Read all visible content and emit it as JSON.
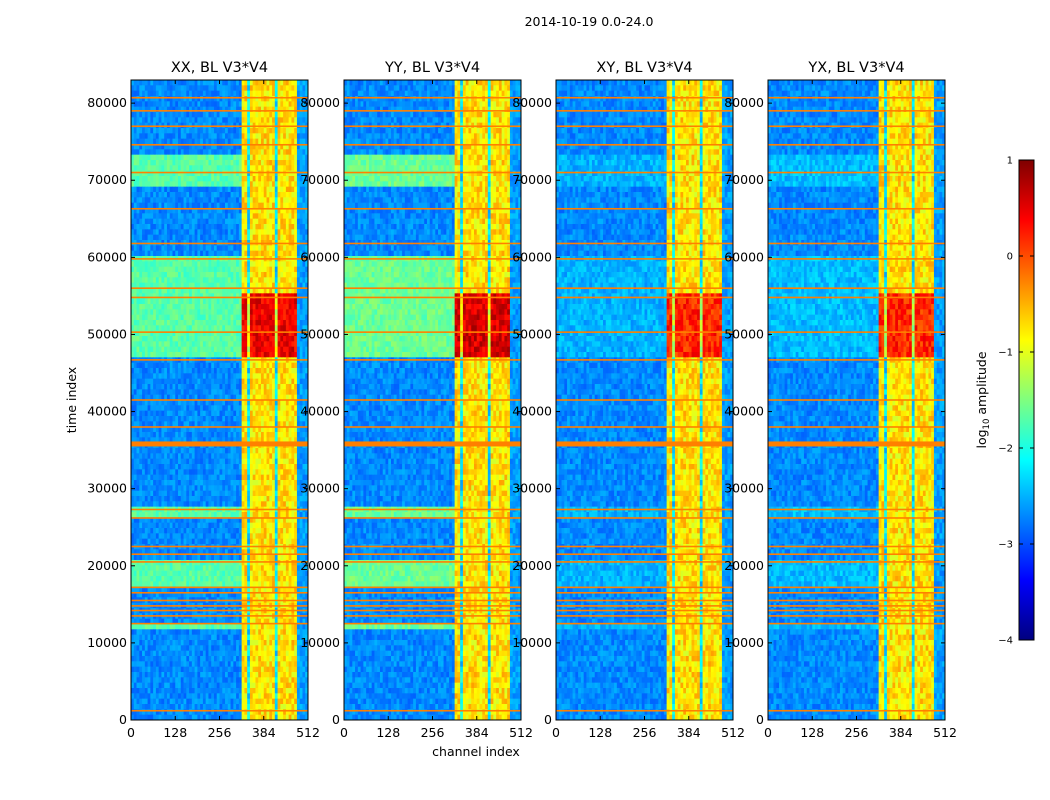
{
  "chart_data": {
    "type": "heatmap",
    "suptitle": "2014-10-19 0.0-24.0",
    "xlabel": "channel index",
    "ylabel": "time index",
    "xlim": [
      0,
      512
    ],
    "ylim": [
      0,
      83000
    ],
    "xticks": [
      0,
      128,
      256,
      384,
      512
    ],
    "yticks": [
      0,
      10000,
      20000,
      30000,
      40000,
      50000,
      60000,
      70000,
      80000
    ],
    "panels": [
      {
        "title": "XX, BL V3*V4",
        "band_level": 0.2,
        "peak_level": 0.95
      },
      {
        "title": "YY, BL V3*V4",
        "band_level": 0.22,
        "peak_level": 0.97
      },
      {
        "title": "XY, BL V3*V4",
        "band_level": 0.04,
        "peak_level": 0.9
      },
      {
        "title": "YX, BL V3*V4",
        "band_level": 0.05,
        "peak_level": 0.9
      }
    ],
    "bright_channel_range": [
      322,
      480
    ],
    "strong_time_range": [
      47000,
      55000
    ],
    "elevated_time_ranges": [
      [
        47000,
        60000
      ],
      [
        69500,
        73500
      ],
      [
        11500,
        12500
      ],
      [
        17500,
        20500
      ],
      [
        26000,
        27500
      ]
    ],
    "flagged_time_rows": [
      1200,
      12500,
      13500,
      14200,
      14800,
      15500,
      16500,
      17200,
      20500,
      21500,
      22500,
      26200,
      27300,
      35800,
      38000,
      41500,
      46700,
      50300,
      54800,
      56000,
      59800,
      61800,
      66300,
      71000,
      74600,
      77000,
      79000,
      80700
    ],
    "colorbar": {
      "label": "log10 amplitude",
      "label_main": "log",
      "label_sub": "10",
      "label_tail": " amplitude",
      "range": [
        -4,
        1
      ],
      "ticks": [
        "1",
        "0",
        "−1",
        "−2",
        "−3",
        "−4"
      ],
      "colormap": [
        "#00007f",
        "#0000ff",
        "#007fff",
        "#00ffff",
        "#7fff7f",
        "#ffff00",
        "#ff7f00",
        "#ff0000",
        "#7f0000"
      ]
    }
  }
}
